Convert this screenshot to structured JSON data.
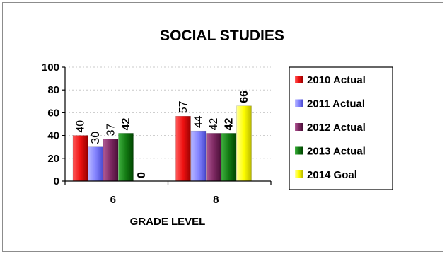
{
  "chart_data": {
    "type": "bar",
    "title": "SOCIAL STUDIES",
    "xlabel": "GRADE LEVEL",
    "ylabel": "",
    "ylim": [
      0,
      100
    ],
    "yticks": [
      "0",
      "20",
      "40",
      "60",
      "80",
      "100"
    ],
    "grid": true,
    "legend_position": "right",
    "categories": [
      "6",
      "8"
    ],
    "series": [
      {
        "name": "2010 Actual",
        "values": [
          40,
          57
        ],
        "labels": [
          "40",
          "57"
        ],
        "label_bold": false,
        "color": "#e41a1c"
      },
      {
        "name": "2011 Actual",
        "values": [
          30,
          44
        ],
        "labels": [
          "30",
          "44"
        ],
        "label_bold": false,
        "color": "#8080ff"
      },
      {
        "name": "2012 Actual",
        "values": [
          37,
          42
        ],
        "labels": [
          "37",
          "42"
        ],
        "label_bold": false,
        "color": "#7f2a63"
      },
      {
        "name": "2013 Actual",
        "values": [
          42,
          42
        ],
        "labels": [
          "42",
          "42"
        ],
        "label_bold": true,
        "color": "#1a7a1a"
      },
      {
        "name": "2014 Goal",
        "values": [
          0,
          66
        ],
        "labels": [
          "0",
          "66"
        ],
        "label_bold": true,
        "color": "#ffff00"
      }
    ]
  }
}
